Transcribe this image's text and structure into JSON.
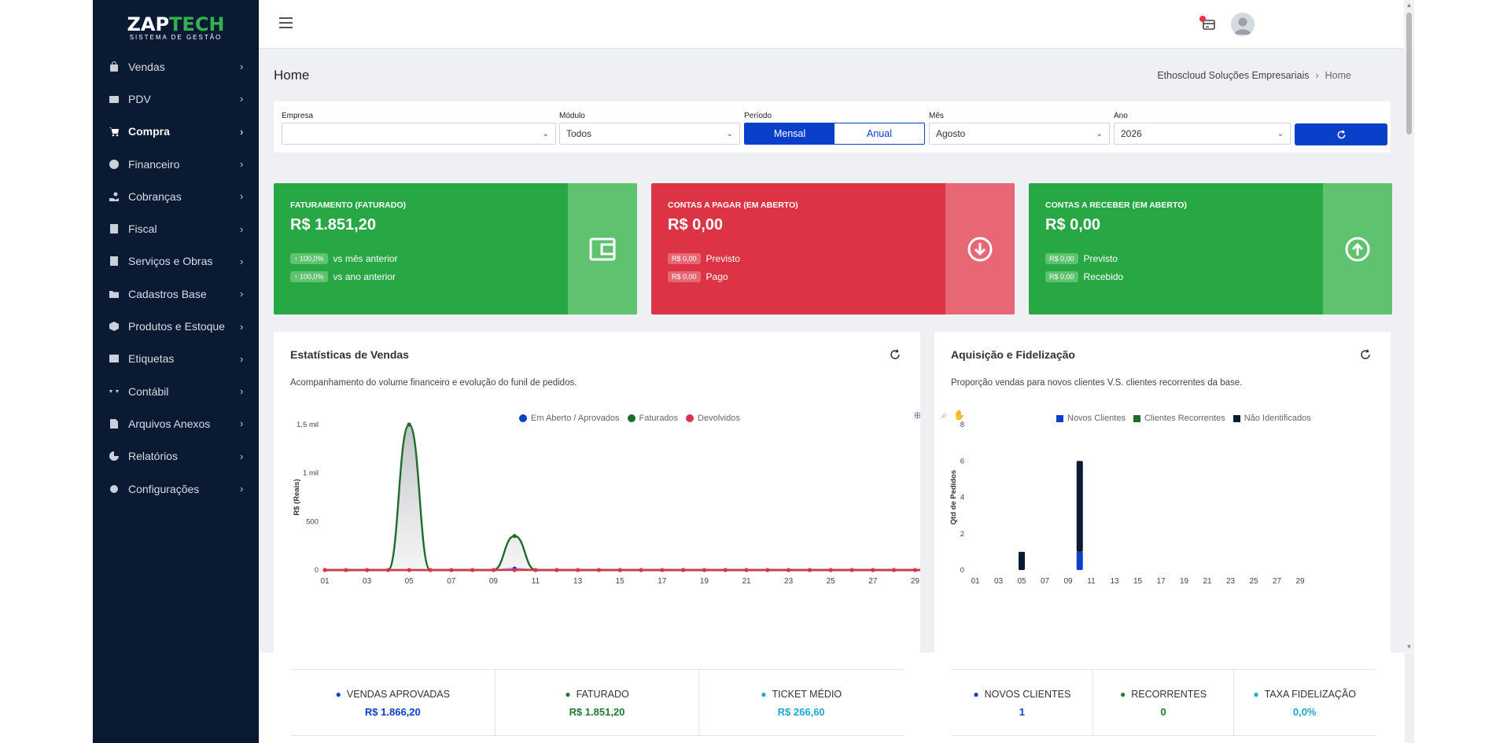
{
  "brand": {
    "name_a": "ZAP",
    "name_b": "TECH",
    "tagline": "SISTEMA DE GESTÃO",
    "accent": "#35b04f"
  },
  "sidebar": {
    "items": [
      {
        "label": "Vendas",
        "icon": "shopping-bag-icon",
        "active": false
      },
      {
        "label": "PDV",
        "icon": "cash-register-icon",
        "active": false
      },
      {
        "label": "Compra",
        "icon": "cart-icon",
        "active": true
      },
      {
        "label": "Financeiro",
        "icon": "dollar-circle-icon",
        "active": false
      },
      {
        "label": "Cobranças",
        "icon": "hand-coins-icon",
        "active": false
      },
      {
        "label": "Fiscal",
        "icon": "receipt-icon",
        "active": false
      },
      {
        "label": "Serviços e Obras",
        "icon": "building-icon",
        "active": false
      },
      {
        "label": "Cadastros Base",
        "icon": "folder-icon",
        "active": false
      },
      {
        "label": "Produtos e Estoque",
        "icon": "box-icon",
        "active": false
      },
      {
        "label": "Etiquetas",
        "icon": "barcode-icon",
        "active": false
      },
      {
        "label": "Contábil",
        "icon": "scale-icon",
        "active": false
      },
      {
        "label": "Arquivos Anexos",
        "icon": "file-icon",
        "active": false
      },
      {
        "label": "Relatórios",
        "icon": "pie-chart-icon",
        "active": false
      },
      {
        "label": "Configurações",
        "icon": "gear-icon",
        "active": false
      }
    ]
  },
  "page": {
    "title": "Home",
    "breadcrumb_company": "Ethoscloud Soluções Empresariais",
    "breadcrumb_current": "Home"
  },
  "filters": {
    "empresa_label": "Empresa",
    "empresa_value": "",
    "modulo_label": "Módulo",
    "modulo_value": "Todos",
    "periodo_label": "Período",
    "periodo_opt1": "Mensal",
    "periodo_opt2": "Anual",
    "periodo_selected": "Mensal",
    "mes_label": "Mês",
    "mes_value": "Agosto",
    "ano_label": "Ano",
    "ano_value": "2026"
  },
  "kpis": {
    "faturamento": {
      "title": "FATURAMENTO (FATURADO)",
      "value": "R$ 1.851,20",
      "chip1": "↑ 100,0%",
      "text1": "vs mês anterior",
      "chip2": "↑ 100,0%",
      "text2": "vs ano anterior"
    },
    "pagar": {
      "title": "CONTAS A PAGAR (EM ABERTO)",
      "value": "R$ 0,00",
      "chip1": "R$ 0,00",
      "text1": "Previsto",
      "chip2": "R$ 0,00",
      "text2": "Pago"
    },
    "receber": {
      "title": "CONTAS A RECEBER (EM ABERTO)",
      "value": "R$ 0,00",
      "chip1": "R$ 0,00",
      "text1": "Previsto",
      "chip2": "R$ 0,00",
      "text2": "Recebido"
    }
  },
  "colors": {
    "green": "#28a745",
    "red": "#dc3444",
    "blue": "#0a3fc9",
    "navy": "#0b1a33",
    "dark_green": "#1e6b2c"
  },
  "vendas_panel": {
    "title": "Estatísticas de Vendas",
    "subtitle": "Acompanhamento do volume financeiro e evolução do funil de pedidos.",
    "legend": [
      "Em Aberto / Aprovados",
      "Faturados",
      "Devolvidos"
    ]
  },
  "aquisicao_panel": {
    "title": "Aquisição e Fidelização",
    "subtitle": "Proporção vendas para novos clientes V.S. clientes recorrentes da base.",
    "legend": [
      "Novos Clientes",
      "Clientes Recorrentes",
      "Não Identificados"
    ]
  },
  "chart_data": [
    {
      "type": "area",
      "ylabel": "R$ (Reais)",
      "xlabel": "",
      "ylim": [
        0,
        1500
      ],
      "y_ticks": [
        "0",
        "500",
        "1 mil",
        "1,5 mil"
      ],
      "x_tick_labels": [
        "01",
        "03",
        "05",
        "07",
        "09",
        "11",
        "13",
        "15",
        "17",
        "19",
        "21",
        "23",
        "25",
        "27",
        "29"
      ],
      "x": [
        1,
        2,
        3,
        4,
        5,
        6,
        7,
        8,
        9,
        10,
        11,
        12,
        13,
        14,
        15,
        16,
        17,
        18,
        19,
        20,
        21,
        22,
        23,
        24,
        25,
        26,
        27,
        28,
        29,
        30
      ],
      "series": [
        {
          "name": "Em Aberto / Aprovados",
          "color": "#0a3fc9",
          "values": [
            0,
            0,
            0,
            0,
            0,
            0,
            0,
            0,
            0,
            15,
            0,
            0,
            0,
            0,
            0,
            0,
            0,
            0,
            0,
            0,
            0,
            0,
            0,
            0,
            0,
            0,
            0,
            0,
            0,
            0
          ]
        },
        {
          "name": "Faturados",
          "color": "#1e6b2c",
          "values": [
            0,
            0,
            0,
            0,
            1500,
            0,
            0,
            0,
            0,
            351,
            0,
            0,
            0,
            0,
            0,
            0,
            0,
            0,
            0,
            0,
            0,
            0,
            0,
            0,
            0,
            0,
            0,
            0,
            0,
            0
          ]
        },
        {
          "name": "Devolvidos",
          "color": "#dc3444",
          "values": [
            0,
            0,
            0,
            0,
            0,
            0,
            0,
            0,
            0,
            0,
            0,
            0,
            0,
            0,
            0,
            0,
            0,
            0,
            0,
            0,
            0,
            0,
            0,
            0,
            0,
            0,
            0,
            0,
            0,
            0
          ]
        }
      ],
      "grid": false,
      "legend": "top-center"
    },
    {
      "type": "bar",
      "ylabel": "Qtd de Pedidos",
      "xlabel": "",
      "ylim": [
        0,
        8
      ],
      "y_ticks": [
        "0",
        "2",
        "4",
        "6",
        "8"
      ],
      "x_tick_labels": [
        "01",
        "03",
        "05",
        "07",
        "09",
        "11",
        "13",
        "15",
        "17",
        "19",
        "21",
        "23",
        "25",
        "27",
        "29"
      ],
      "stacked": true,
      "x": [
        5,
        10
      ],
      "series": [
        {
          "name": "Novos Clientes",
          "color": "#0a3fc9",
          "values": [
            0,
            1
          ]
        },
        {
          "name": "Clientes Recorrentes",
          "color": "#1e6b2c",
          "values": [
            0,
            0
          ]
        },
        {
          "name": "Não Identificados",
          "color": "#0b1a33",
          "values": [
            1,
            5
          ]
        }
      ],
      "grid": false,
      "legend": "top-center"
    }
  ],
  "stats_left": [
    {
      "label": "VENDAS APROVADAS",
      "value": "R$ 1.866,20",
      "color": "#0a3fc9",
      "icon": "cart-icon"
    },
    {
      "label": "FATURADO",
      "value": "R$ 1.851,20",
      "color": "#1e7b30",
      "icon": "dollar-circle-icon"
    },
    {
      "label": "TICKET MÉDIO",
      "value": "R$ 266,60",
      "color": "#1ba8d6",
      "icon": "ticket-icon"
    }
  ],
  "stats_right": [
    {
      "label": "NOVOS CLIENTES",
      "value": "1",
      "color": "#0a3fc9",
      "icon": "user-plus-icon"
    },
    {
      "label": "RECORRENTES",
      "value": "0",
      "color": "#1e7b30",
      "icon": "user-check-icon"
    },
    {
      "label": "TAXA FIDELIZAÇÃO",
      "value": "0,0%",
      "color": "#1ba8d6",
      "icon": "clock-icon"
    }
  ]
}
